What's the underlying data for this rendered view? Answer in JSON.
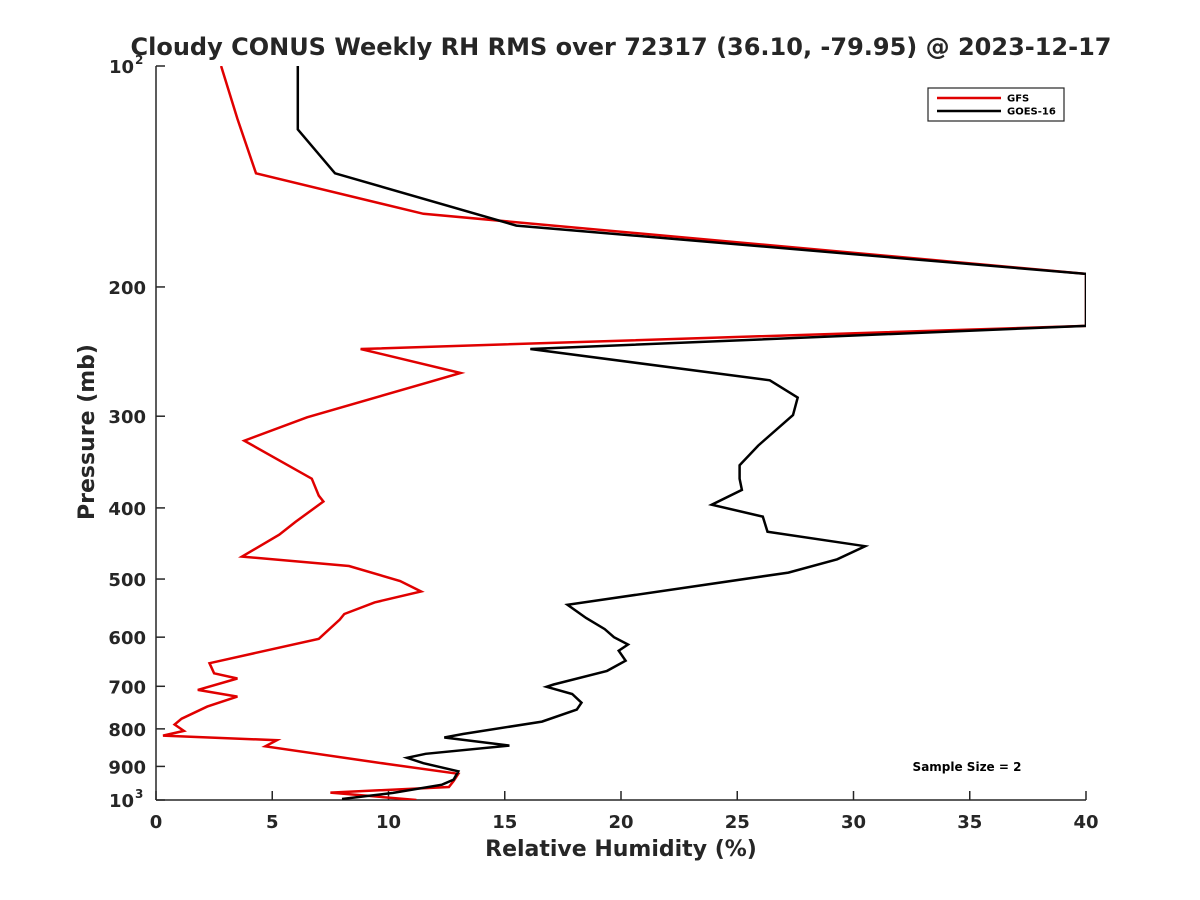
{
  "chart_data": {
    "type": "line",
    "title": "Cloudy CONUS Weekly RH RMS over 72317 (36.10, -79.95) @ 2023-12-17",
    "xlabel": "Relative Humidity (%)",
    "ylabel": "Pressure (mb)",
    "xlim": [
      0,
      40
    ],
    "ylim": [
      100,
      1000
    ],
    "y_scale": "log",
    "y_reversed": true,
    "grid": false,
    "legend_position": "top-right",
    "x_ticks": [
      "0",
      "5",
      "10",
      "15",
      "20",
      "25",
      "30",
      "35",
      "40"
    ],
    "y_ticks": [
      {
        "value": 100,
        "base": "10",
        "exp": "2"
      },
      {
        "value": 200,
        "label": "200"
      },
      {
        "value": 300,
        "label": "300"
      },
      {
        "value": 400,
        "label": "400"
      },
      {
        "value": 500,
        "label": "500"
      },
      {
        "value": 600,
        "label": "600"
      },
      {
        "value": 700,
        "label": "700"
      },
      {
        "value": 800,
        "label": "800"
      },
      {
        "value": 900,
        "label": "900"
      },
      {
        "value": 1000,
        "base": "10",
        "exp": "3"
      }
    ],
    "annotation": "Sample Size = 2",
    "series": [
      {
        "name": "GFS",
        "color": "#e00000",
        "points": [
          [
            2.8,
            100
          ],
          [
            3.5,
            118
          ],
          [
            4.3,
            140
          ],
          [
            11.5,
            159
          ],
          [
            40,
            192
          ],
          [
            40,
            226
          ],
          [
            8.8,
            243
          ],
          [
            13.1,
            262
          ],
          [
            6.5,
            301
          ],
          [
            3.8,
            324
          ],
          [
            6.7,
            365
          ],
          [
            7.0,
            385
          ],
          [
            7.2,
            392
          ],
          [
            6.0,
            418
          ],
          [
            5.3,
            435
          ],
          [
            3.7,
            466
          ],
          [
            8.3,
            480
          ],
          [
            10.5,
            503
          ],
          [
            11.4,
            520
          ],
          [
            9.4,
            538
          ],
          [
            8.1,
            558
          ],
          [
            7.9,
            568
          ],
          [
            7.0,
            603
          ],
          [
            2.3,
            651
          ],
          [
            2.5,
            672
          ],
          [
            3.5,
            683
          ],
          [
            1.8,
            708
          ],
          [
            3.5,
            723
          ],
          [
            2.2,
            746
          ],
          [
            1.1,
            775
          ],
          [
            0.8,
            789
          ],
          [
            1.2,
            805
          ],
          [
            0.3,
            817
          ],
          [
            5.2,
            829
          ],
          [
            4.7,
            845
          ],
          [
            9.5,
            889
          ],
          [
            13.0,
            921
          ],
          [
            12.8,
            942
          ],
          [
            12.6,
            960
          ],
          [
            7.5,
            977
          ],
          [
            11.2,
            1000
          ]
        ]
      },
      {
        "name": "GOES-16",
        "color": "#000000",
        "points": [
          [
            6.1,
            100
          ],
          [
            6.1,
            122
          ],
          [
            7.7,
            140
          ],
          [
            15.5,
            165
          ],
          [
            40,
            192
          ],
          [
            40,
            226
          ],
          [
            16.1,
            243
          ],
          [
            26.4,
            268
          ],
          [
            27.6,
            283
          ],
          [
            27.4,
            299
          ],
          [
            25.9,
            329
          ],
          [
            25.1,
            350
          ],
          [
            25.1,
            365
          ],
          [
            25.2,
            378
          ],
          [
            23.9,
            396
          ],
          [
            26.1,
            411
          ],
          [
            26.3,
            431
          ],
          [
            30.5,
            451
          ],
          [
            29.3,
            470
          ],
          [
            27.2,
            490
          ],
          [
            17.7,
            542
          ],
          [
            18.5,
            565
          ],
          [
            19.3,
            585
          ],
          [
            19.7,
            600
          ],
          [
            20.3,
            614
          ],
          [
            19.9,
            626
          ],
          [
            20.2,
            646
          ],
          [
            19.4,
            667
          ],
          [
            17.1,
            696
          ],
          [
            16.8,
            701
          ],
          [
            17.9,
            717
          ],
          [
            18.3,
            737
          ],
          [
            18.1,
            753
          ],
          [
            16.6,
            782
          ],
          [
            13.2,
            813
          ],
          [
            12.4,
            822
          ],
          [
            15.2,
            843
          ],
          [
            11.6,
            865
          ],
          [
            10.8,
            876
          ],
          [
            11.5,
            891
          ],
          [
            13.0,
            914
          ],
          [
            12.8,
            938
          ],
          [
            12.3,
            953
          ],
          [
            10.2,
            978
          ],
          [
            8.0,
            997
          ]
        ]
      }
    ]
  }
}
